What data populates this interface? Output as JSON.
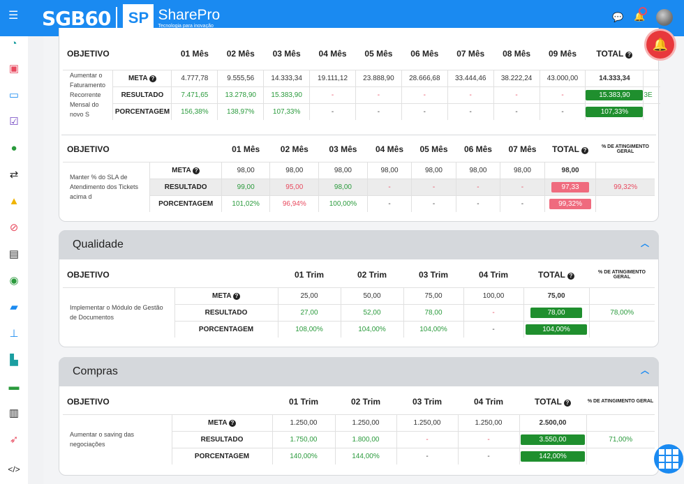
{
  "header": {
    "logo_sg": "SGB60",
    "logo_sp": "SP",
    "brand_name": "SharePro",
    "brand_tagline": "Tecnologia para inovação"
  },
  "sidebar_icons": [
    "dashboard-icon",
    "calendar-check-icon",
    "clipboard-icon",
    "checkbox-icon",
    "users-icon",
    "exchange-icon",
    "warning-icon",
    "ban-icon",
    "document-icon",
    "eye-icon",
    "folder-icon",
    "sitemap-icon",
    "industry-chart-icon",
    "id-card-icon",
    "bar-chart-icon",
    "rocket-icon",
    "code-icon"
  ],
  "table1": {
    "objective_header": "OBJETIVO",
    "months": [
      "01 Mês",
      "02 Mês",
      "03 Mês",
      "04 Mês",
      "05 Mês",
      "06 Mês",
      "07 Mês",
      "08 Mês",
      "09 Mês"
    ],
    "total_header": "TOTAL",
    "objective_text": "Aumentar o Faturamento Recorrente Mensal do novo S",
    "meta_label": "META",
    "meta": [
      "4.777,78",
      "9.555,56",
      "14.333,34",
      "19.111,12",
      "23.888,90",
      "28.666,68",
      "33.444,46",
      "38.222,24",
      "43.000,00"
    ],
    "meta_total": "14.333,34",
    "resultado_label": "RESULTADO",
    "resultado": [
      "7.471,65",
      "13.278,90",
      "15.383,90",
      "-",
      "-",
      "-",
      "-",
      "-",
      "-"
    ],
    "resultado_total": "15.383,90",
    "resultado_overflow": "3E",
    "porcentagem_label": "PORCENTAGEM",
    "porcentagem": [
      "156,38%",
      "138,97%",
      "107,33%",
      "-",
      "-",
      "-",
      "-",
      "-",
      "-"
    ],
    "porcentagem_total": "107,33%"
  },
  "table2": {
    "objective_header": "OBJETIVO",
    "months": [
      "01 Mês",
      "02 Mês",
      "03 Mês",
      "04 Mês",
      "05 Mês",
      "06 Mês",
      "07 Mês"
    ],
    "total_header": "TOTAL",
    "atingimento_header": "% DE ATINGIMENTO GERAL",
    "objective_text": "Manter % do SLA de Atendimento dos Tickets acima d",
    "meta_label": "META",
    "meta": [
      "98,00",
      "98,00",
      "98,00",
      "98,00",
      "98,00",
      "98,00",
      "98,00"
    ],
    "meta_total": "98,00",
    "resultado_label": "RESULTADO",
    "resultado": [
      "99,00",
      "95,00",
      "98,00",
      "-",
      "-",
      "-",
      "-"
    ],
    "resultado_total": "97,33",
    "resultado_atingimento": "99,32%",
    "porcentagem_label": "PORCENTAGEM",
    "porcentagem": [
      "101,02%",
      "96,94%",
      "100,00%",
      "-",
      "-",
      "-",
      "-"
    ],
    "porcentagem_total": "99,32%"
  },
  "qualidade": {
    "section_title": "Qualidade",
    "objective_header": "OBJETIVO",
    "periods": [
      "01 Trim",
      "02 Trim",
      "03 Trim",
      "04 Trim"
    ],
    "total_header": "TOTAL",
    "atingimento_header": "% DE ATINGIMENTO GERAL",
    "objective_text": "Implementar o Módulo de Gestão de Documentos",
    "meta_label": "META",
    "meta": [
      "25,00",
      "50,00",
      "75,00",
      "100,00"
    ],
    "meta_total": "75,00",
    "resultado_label": "RESULTADO",
    "resultado": [
      "27,00",
      "52,00",
      "78,00",
      "-"
    ],
    "resultado_total": "78,00",
    "resultado_atingimento": "78,00%",
    "porcentagem_label": "PORCENTAGEM",
    "porcentagem": [
      "108,00%",
      "104,00%",
      "104,00%",
      "-"
    ],
    "porcentagem_total": "104,00%"
  },
  "compras": {
    "section_title": "Compras",
    "objective_header": "OBJETIVO",
    "periods": [
      "01 Trim",
      "02 Trim",
      "03 Trim",
      "04 Trim"
    ],
    "total_header": "TOTAL",
    "atingimento_header": "% DE ATINGIMENTO GERAL",
    "objective_text": "Aumentar o saving das negociações",
    "meta_label": "META",
    "meta": [
      "1.250,00",
      "1.250,00",
      "1.250,00",
      "1.250,00"
    ],
    "meta_total": "2.500,00",
    "resultado_label": "RESULTADO",
    "resultado": [
      "1.750,00",
      "1.800,00",
      "-",
      "-"
    ],
    "resultado_total": "3.550,00",
    "resultado_atingimento": "71,00%",
    "porcentagem_label": "PORCENTAGEM",
    "porcentagem": [
      "140,00%",
      "144,00%",
      "-",
      "-"
    ],
    "porcentagem_total": "142,00%"
  },
  "colors": {
    "primary": "#1a8af1",
    "success": "#1f8f2e",
    "danger": "#ef6b7e",
    "alarm": "#e8383c"
  }
}
